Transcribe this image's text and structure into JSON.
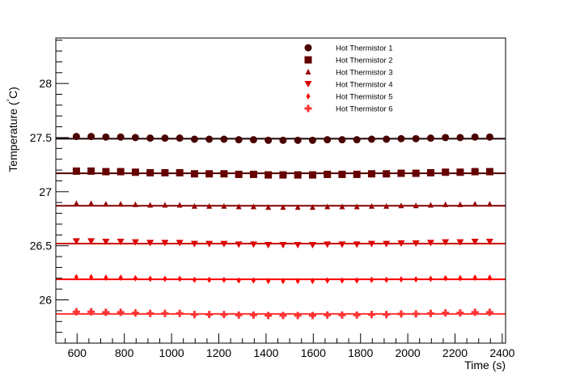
{
  "chart_data": {
    "type": "scatter",
    "title": "",
    "xlabel": "Time (s)",
    "ylabel": "Temperature (°C)",
    "ylabel_parts": {
      "main": "Temperature (",
      "degree": "°",
      "unit": "C)"
    },
    "xlim": [
      510,
      2414
    ],
    "ylim": [
      25.6,
      28.42
    ],
    "x_ticks": [
      600,
      800,
      1000,
      1200,
      1400,
      1600,
      1800,
      2000,
      2200,
      2400
    ],
    "x_tick_labels": [
      "600",
      "800",
      "1000",
      "1200",
      "1400",
      "1600",
      "1800",
      "2000",
      "2200",
      "2400"
    ],
    "y_ticks": [
      26,
      26.5,
      27,
      27.5,
      28
    ],
    "y_tick_labels": [
      "26",
      "26.5",
      "27",
      "27.5",
      "28"
    ],
    "grid": false,
    "legend_position": "top-right",
    "x": [
      597,
      659.5,
      722,
      784.5,
      847,
      909.5,
      972,
      1034.5,
      1097,
      1159.5,
      1222,
      1284.5,
      1347,
      1409.5,
      1472,
      1534.5,
      1597,
      1659.5,
      1722,
      1784.5,
      1847,
      1909.5,
      1972,
      2034.5,
      2097,
      2159.5,
      2222,
      2284.5,
      2347
    ],
    "offsets": [
      0.02,
      0.02,
      0.015,
      0.015,
      0.01,
      0.005,
      0.005,
      0.005,
      -0.005,
      -0.005,
      -0.005,
      -0.01,
      -0.01,
      -0.015,
      -0.015,
      -0.015,
      -0.015,
      -0.01,
      -0.01,
      -0.01,
      -0.005,
      -0.005,
      0,
      0,
      0.005,
      0.01,
      0.01,
      0.015,
      0.015
    ],
    "series": [
      {
        "name": "Hot Thermistor 1",
        "fit": 27.49,
        "marker": "circle",
        "color": "#4a0000",
        "line_color": "#1a0000"
      },
      {
        "name": "Hot Thermistor 2",
        "fit": 27.17,
        "marker": "square",
        "color": "#660000",
        "line_color": "#4d0000"
      },
      {
        "name": "Hot Thermistor 3",
        "fit": 26.87,
        "marker": "triangle-up",
        "color": "#990000",
        "line_color": "#800000"
      },
      {
        "name": "Hot Thermistor 4",
        "fit": 26.52,
        "marker": "triangle-down",
        "color": "#dd0000",
        "line_color": "#cc0000"
      },
      {
        "name": "Hot Thermistor 5",
        "fit": 26.19,
        "marker": "diamond",
        "color": "#ff0000",
        "line_color": "#ff0000"
      },
      {
        "name": "Hot Thermistor 6",
        "fit": 25.87,
        "marker": "cross",
        "color": "#ff3333",
        "line_color": "#ff3333"
      }
    ]
  }
}
